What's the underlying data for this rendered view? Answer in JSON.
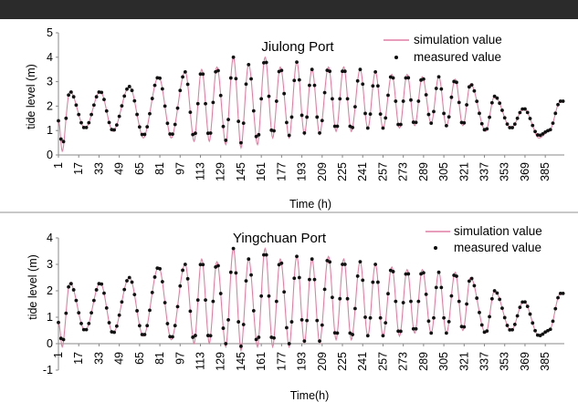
{
  "chart_data": [
    {
      "type": "line",
      "title": "Jiulong Port",
      "xlabel": "Time (h)",
      "ylabel": "tide level (m)",
      "ylim": [
        0,
        5
      ],
      "yticks": [
        "0",
        "1",
        "2",
        "3",
        "4",
        "5"
      ],
      "xticks": [
        "1",
        "17",
        "33",
        "49",
        "65",
        "81",
        "97",
        "113",
        "129",
        "145",
        "161",
        "177",
        "193",
        "209",
        "225",
        "241",
        "257",
        "273",
        "289",
        "305",
        "321",
        "337",
        "353",
        "369",
        "385"
      ],
      "xlim": [
        1,
        400
      ],
      "legend_position": "top-right",
      "series": [
        {
          "name": "simulation value",
          "style": "line",
          "color": "#e17fa3"
        },
        {
          "name": "measured value",
          "style": "points",
          "color": "#111111"
        }
      ],
      "highs": [
        [
          10,
          2.6
        ],
        [
          34,
          2.6
        ],
        [
          57,
          2.8
        ],
        [
          80,
          3.2
        ],
        [
          101,
          3.4
        ],
        [
          114,
          3.5
        ],
        [
          126,
          3.6
        ],
        [
          139,
          4.0
        ],
        [
          151,
          3.7
        ],
        [
          164,
          4.0
        ],
        [
          176,
          3.6
        ],
        [
          189,
          3.8
        ],
        [
          201,
          3.5
        ],
        [
          214,
          3.6
        ],
        [
          226,
          3.6
        ],
        [
          239,
          3.5
        ],
        [
          251,
          3.4
        ],
        [
          264,
          3.3
        ],
        [
          276,
          3.3
        ],
        [
          288,
          3.2
        ],
        [
          301,
          3.2
        ],
        [
          314,
          3.1
        ],
        [
          326,
          2.9
        ],
        [
          345,
          2.4
        ],
        [
          368,
          1.9
        ],
        [
          397,
          2.2
        ]
      ],
      "lows": [
        [
          1,
          1.4
        ],
        [
          4,
          0.4
        ],
        [
          22,
          1.1
        ],
        [
          44,
          1.0
        ],
        [
          68,
          0.8
        ],
        [
          90,
          0.8
        ],
        [
          108,
          0.7
        ],
        [
          120,
          0.7
        ],
        [
          133,
          0.6
        ],
        [
          145,
          0.5
        ],
        [
          158,
          0.6
        ],
        [
          170,
          0.8
        ],
        [
          183,
          0.8
        ],
        [
          195,
          0.9
        ],
        [
          207,
          0.9
        ],
        [
          220,
          1.0
        ],
        [
          232,
          1.0
        ],
        [
          245,
          1.1
        ],
        [
          257,
          1.1
        ],
        [
          270,
          1.1
        ],
        [
          282,
          1.2
        ],
        [
          295,
          1.3
        ],
        [
          307,
          1.2
        ],
        [
          320,
          1.2
        ],
        [
          338,
          1.0
        ],
        [
          358,
          1.1
        ],
        [
          380,
          0.8
        ],
        [
          388,
          1.0
        ]
      ]
    },
    {
      "type": "line",
      "title": "Yingchuan Port",
      "xlabel": "Time(h)",
      "ylabel": "tide level (m)",
      "ylim": [
        -1,
        4
      ],
      "yticks": [
        "-1",
        "0",
        "1",
        "2",
        "3",
        "4"
      ],
      "xticks": [
        "1",
        "17",
        "33",
        "49",
        "65",
        "81",
        "97",
        "113",
        "129",
        "145",
        "161",
        "177",
        "193",
        "209",
        "225",
        "241",
        "257",
        "273",
        "289",
        "305",
        "321",
        "337",
        "353",
        "369",
        "385"
      ],
      "xlim": [
        1,
        400
      ],
      "legend_position": "top-right",
      "series": [
        {
          "name": "simulation value",
          "style": "line",
          "color": "#e17fa3"
        },
        {
          "name": "measured value",
          "style": "points",
          "color": "#111111"
        }
      ],
      "highs": [
        [
          10,
          2.3
        ],
        [
          34,
          2.3
        ],
        [
          57,
          2.5
        ],
        [
          80,
          2.9
        ],
        [
          101,
          3.0
        ],
        [
          114,
          3.2
        ],
        [
          126,
          3.1
        ],
        [
          139,
          3.6
        ],
        [
          151,
          3.2
        ],
        [
          164,
          3.6
        ],
        [
          176,
          3.2
        ],
        [
          189,
          3.3
        ],
        [
          201,
          3.2
        ],
        [
          214,
          3.3
        ],
        [
          226,
          3.2
        ],
        [
          239,
          3.1
        ],
        [
          251,
          3.0
        ],
        [
          264,
          2.9
        ],
        [
          276,
          2.8
        ],
        [
          288,
          2.8
        ],
        [
          301,
          2.7
        ],
        [
          314,
          2.7
        ],
        [
          326,
          2.5
        ],
        [
          345,
          2.0
        ],
        [
          368,
          1.6
        ],
        [
          397,
          1.9
        ]
      ],
      "lows": [
        [
          1,
          0.8
        ],
        [
          4,
          0.0
        ],
        [
          22,
          0.5
        ],
        [
          44,
          0.4
        ],
        [
          68,
          0.3
        ],
        [
          90,
          0.2
        ],
        [
          108,
          0.1
        ],
        [
          120,
          0.1
        ],
        [
          133,
          0.0
        ],
        [
          145,
          -0.1
        ],
        [
          158,
          0.0
        ],
        [
          170,
          0.0
        ],
        [
          183,
          0.0
        ],
        [
          195,
          0.1
        ],
        [
          207,
          0.1
        ],
        [
          220,
          0.2
        ],
        [
          232,
          0.2
        ],
        [
          245,
          0.3
        ],
        [
          257,
          0.3
        ],
        [
          270,
          0.3
        ],
        [
          282,
          0.4
        ],
        [
          295,
          0.4
        ],
        [
          307,
          0.4
        ],
        [
          320,
          0.5
        ],
        [
          338,
          0.4
        ],
        [
          358,
          0.5
        ],
        [
          380,
          0.3
        ],
        [
          388,
          0.5
        ]
      ]
    }
  ]
}
